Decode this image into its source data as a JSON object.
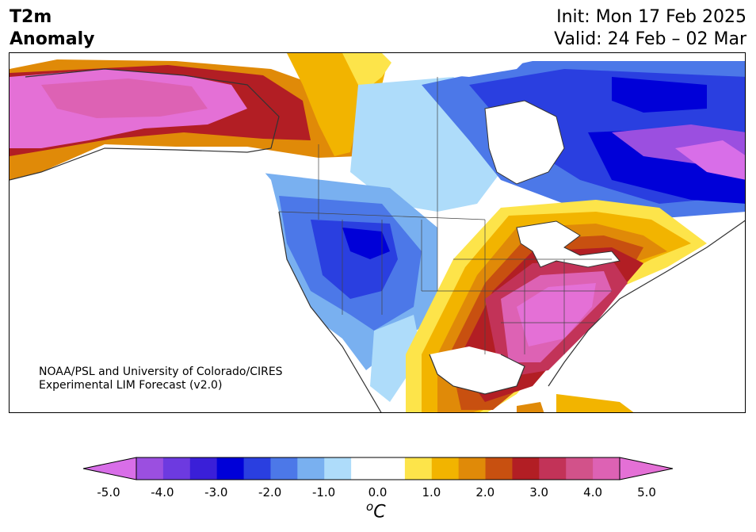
{
  "header": {
    "title_line1": "T2m",
    "title_line2": "Anomaly",
    "init": "Init: Mon 17 Feb 2025",
    "valid": "Valid: 24 Feb – 02 Mar"
  },
  "credit": {
    "line1": "NOAA/PSL and University of Colorado/CIRES",
    "line2": "Experimental LIM Forecast (v2.0)"
  },
  "colorbar": {
    "ticks": [
      "-5.0",
      "-4.0",
      "-3.0",
      "-2.0",
      "-1.0",
      "0.0",
      "1.0",
      "2.0",
      "3.0",
      "4.0",
      "5.0"
    ],
    "units_symbol": "o",
    "units_letter": "C",
    "colors": [
      "#d86ee8",
      "#9b4fe0",
      "#6d3ae0",
      "#3a1fd8",
      "#0000d8",
      "#2a3fe0",
      "#4c78e8",
      "#79b0f0",
      "#aedcfa",
      "#ffffff",
      "#ffffff",
      "#fde44a",
      "#f2b400",
      "#e08a08",
      "#c85010",
      "#b21e24",
      "#c23358",
      "#d2528a",
      "#dd62b4",
      "#e470d6"
    ]
  }
}
